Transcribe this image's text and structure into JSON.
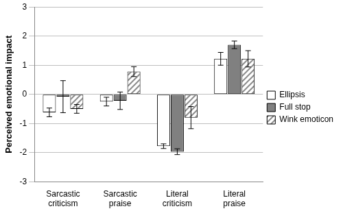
{
  "chart_data": {
    "type": "bar",
    "y_label": "Perceived emotional impact",
    "categories": [
      "Sarcastic criticism",
      "Sarcastic praise",
      "Literal criticism",
      "Literal praise"
    ],
    "series": [
      {
        "name": "Ellipsis",
        "color": "#ffffff",
        "values": [
          -0.62,
          -0.25,
          -1.78,
          1.22
        ],
        "errors": [
          0.15,
          0.15,
          0.08,
          0.22
        ]
      },
      {
        "name": "Full stop",
        "color": "#808080",
        "values": [
          -0.08,
          -0.22,
          -1.97,
          1.7
        ],
        "errors": [
          0.55,
          0.3,
          0.1,
          0.13
        ]
      },
      {
        "name": "Wink emoticon",
        "color": "#8c8c8c",
        "marker": "hatch",
        "values": [
          -0.5,
          0.78,
          -0.8,
          1.22
        ],
        "errors": [
          0.15,
          0.17,
          0.38,
          0.28
        ]
      }
    ],
    "ylim": [
      -3,
      3
    ],
    "yticks": [
      -3,
      -2,
      -1,
      0,
      1,
      2,
      3
    ],
    "grid": true,
    "legend": "right"
  }
}
